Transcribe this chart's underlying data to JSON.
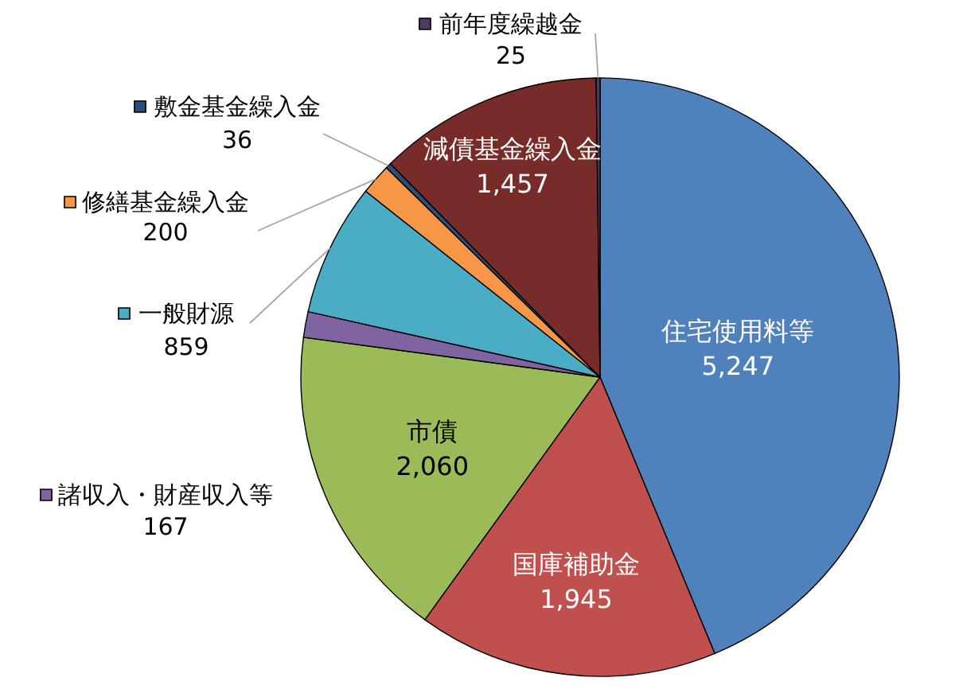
{
  "chart_data": {
    "type": "pie",
    "categories": [
      "住宅使用料等",
      "国庫補助金",
      "市債",
      "諸収入・財産収入等",
      "一般財源",
      "修繕基金繰入金",
      "敷金基金繰入金",
      "減債基金繰入金",
      "前年度繰越金"
    ],
    "values": [
      5247,
      1945,
      2060,
      167,
      859,
      200,
      36,
      1457,
      25
    ],
    "value_labels": [
      "5,247",
      "1,945",
      "2,060",
      "167",
      "859",
      "200",
      "36",
      "1,457",
      "25"
    ],
    "colors": [
      "#4f81bd",
      "#c0504d",
      "#9bbb59",
      "#8064a2",
      "#4bacc6",
      "#f79646",
      "#2c4d75",
      "#772c2a",
      "#4d3b62"
    ],
    "legend": "left"
  }
}
